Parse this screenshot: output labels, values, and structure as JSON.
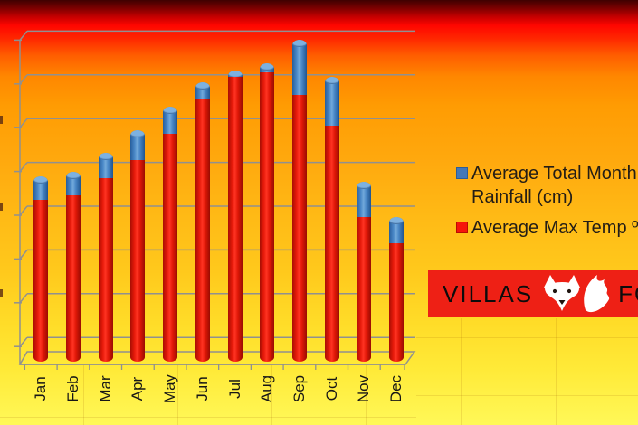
{
  "chart_data": {
    "type": "bar",
    "subtype": "3d-stacked-cylinders",
    "title": "",
    "xlabel": "",
    "ylabel": "",
    "categories": [
      "Jan",
      "Feb",
      "Mar",
      "Apr",
      "May",
      "Jun",
      "Jul",
      "Aug",
      "Sep",
      "Oct",
      "Nov",
      "Dec"
    ],
    "series": [
      {
        "name": "Average Total Month Rainfall (cm)",
        "color": "#4478b8",
        "values": [
          2.7,
          2.7,
          2.9,
          3.4,
          3.1,
          1.9,
          0.8,
          1.1,
          6.3,
          5.5,
          4.1,
          3.0
        ]
      },
      {
        "name": "Average Max Temp º",
        "color": "#f6150a",
        "values": [
          18.5,
          19.0,
          21.0,
          23.0,
          26.0,
          30.0,
          32.5,
          33.0,
          30.5,
          27.0,
          16.5,
          13.5
        ]
      }
    ],
    "ylim": [
      0,
      35
    ],
    "y_step": 5,
    "y_tick_labels_visible": false,
    "grid": true,
    "legend_position": "right"
  },
  "legend": {
    "items": [
      {
        "label_lines": [
          "Average Total Month",
          "Rainfall (cm)"
        ],
        "color": "#4478b8"
      },
      {
        "label_lines": [
          "Average Max Temp º"
        ],
        "color": "#f6150a"
      }
    ]
  },
  "logo": {
    "brand_left": "VILLAS",
    "brand_right": "FOX",
    "bg_color": "#ee2015",
    "icon": "fox-face-and-tail"
  },
  "colors": {
    "bar_red": "#e8190a",
    "bar_blue": "#3c79bd",
    "grid_gray": "#909090",
    "bg_top": "#3f0000",
    "bg_bottom": "#fff858"
  }
}
